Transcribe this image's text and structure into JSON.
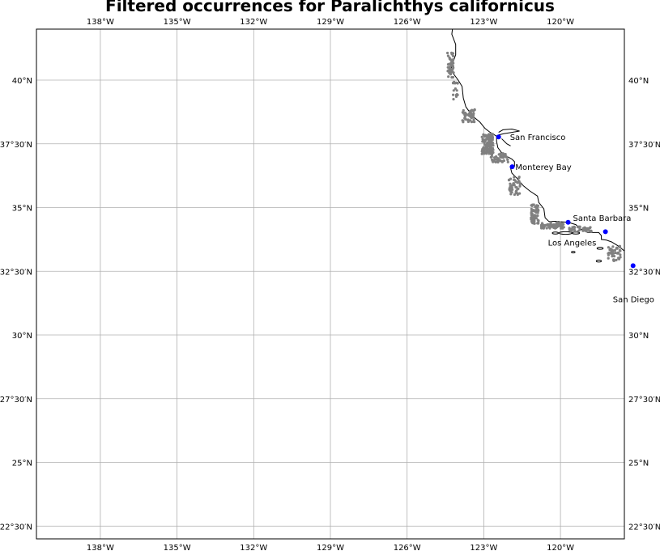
{
  "title": "Filtered occurrences for Paralichthys californicus",
  "map": {
    "extent": {
      "lon": [
        -140.5,
        -117.5
      ],
      "lat": [
        22,
        42
      ]
    },
    "gridlines": true,
    "lon_ticks": [
      {
        "value": -138,
        "label": "138°W"
      },
      {
        "value": -135,
        "label": "135°W"
      },
      {
        "value": -132,
        "label": "132°W"
      },
      {
        "value": -129,
        "label": "129°W"
      },
      {
        "value": -126,
        "label": "126°W"
      },
      {
        "value": -123,
        "label": "123°W"
      },
      {
        "value": -120,
        "label": "120°W"
      }
    ],
    "lat_ticks": [
      {
        "value": 40,
        "label": "40°N"
      },
      {
        "value": 37.5,
        "label": "37°30′N"
      },
      {
        "value": 35,
        "label": "35°N"
      },
      {
        "value": 32.5,
        "label": "32°30′N"
      },
      {
        "value": 30,
        "label": "30°N"
      },
      {
        "value": 27.5,
        "label": "27°30′N"
      },
      {
        "value": 25,
        "label": "25°N"
      },
      {
        "value": 22.5,
        "label": "22°30′N"
      }
    ],
    "cities": [
      {
        "name": "San Francisco",
        "lon": -122.42,
        "lat": 37.77
      },
      {
        "name": "Monterey Bay",
        "lon": -121.89,
        "lat": 36.6
      },
      {
        "name": "Santa Barbara",
        "lon": -119.7,
        "lat": 34.42
      },
      {
        "name": "Los Angeles",
        "lon": -118.24,
        "lat": 34.05
      },
      {
        "name": "San Diego",
        "lon": -117.16,
        "lat": 32.72
      }
    ],
    "colors": {
      "occurrence": "#808080",
      "city": "#0000ff",
      "coast": "#000000",
      "grid": "#b0b0b0"
    },
    "occurrence_clusters": [
      {
        "lon": -124.3,
        "lat": 40.6,
        "slon": 0.12,
        "slat": 0.55,
        "n": 45
      },
      {
        "lon": -124.1,
        "lat": 39.6,
        "slon": 0.1,
        "slat": 0.35,
        "n": 18
      },
      {
        "lon": -123.6,
        "lat": 38.6,
        "slon": 0.25,
        "slat": 0.25,
        "n": 45
      },
      {
        "lon": -122.85,
        "lat": 37.5,
        "slon": 0.22,
        "slat": 0.4,
        "n": 140
      },
      {
        "lon": -122.4,
        "lat": 36.95,
        "slon": 0.35,
        "slat": 0.18,
        "n": 50
      },
      {
        "lon": -121.8,
        "lat": 35.85,
        "slon": 0.22,
        "slat": 0.35,
        "n": 45
      },
      {
        "lon": -121.0,
        "lat": 34.75,
        "slon": 0.15,
        "slat": 0.38,
        "n": 70
      },
      {
        "lon": -120.3,
        "lat": 34.3,
        "slon": 0.45,
        "slat": 0.12,
        "n": 70
      },
      {
        "lon": -119.2,
        "lat": 34.15,
        "slon": 0.45,
        "slat": 0.1,
        "n": 45
      },
      {
        "lon": -117.9,
        "lat": 33.2,
        "slon": 0.25,
        "slat": 0.3,
        "n": 45
      }
    ]
  }
}
